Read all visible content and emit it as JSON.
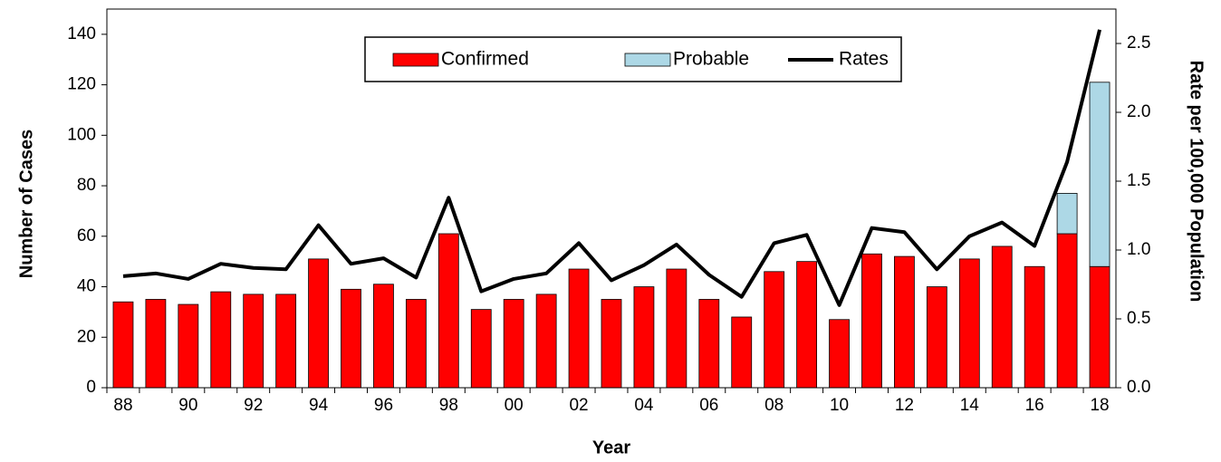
{
  "chart_data": {
    "type": "bar",
    "x_label": "Year",
    "y_label": "Number of Cases",
    "y2_label": "Rate per 100,000 Population",
    "categories": [
      "88",
      null,
      "90",
      null,
      "92",
      null,
      "94",
      null,
      "96",
      null,
      "98",
      null,
      "00",
      null,
      "02",
      null,
      "04",
      null,
      "06",
      null,
      "08",
      null,
      "10",
      null,
      "12",
      null,
      "14",
      null,
      "16",
      null,
      "18"
    ],
    "series": [
      {
        "name": "Confirmed",
        "color": "#ff0000",
        "stacked": true,
        "values": [
          34,
          35,
          33,
          38,
          37,
          37,
          51,
          39,
          41,
          35,
          61,
          31,
          35,
          37,
          47,
          35,
          40,
          47,
          35,
          28,
          46,
          50,
          27,
          53,
          52,
          40,
          51,
          56,
          48,
          61,
          48
        ]
      },
      {
        "name": "Probable",
        "color": "#add8e6",
        "stacked": true,
        "values": [
          0,
          0,
          0,
          0,
          0,
          0,
          0,
          0,
          0,
          0,
          0,
          0,
          0,
          0,
          0,
          0,
          0,
          0,
          0,
          0,
          0,
          0,
          0,
          0,
          0,
          0,
          0,
          0,
          0,
          16,
          73
        ]
      },
      {
        "name": "Rates",
        "color": "#000000",
        "type": "line",
        "axis": "y2",
        "values": [
          0.81,
          0.83,
          0.79,
          0.9,
          0.87,
          0.86,
          1.18,
          0.9,
          0.94,
          0.8,
          1.38,
          0.7,
          0.79,
          0.83,
          1.05,
          0.78,
          0.89,
          1.04,
          0.82,
          0.66,
          1.05,
          1.11,
          0.6,
          1.16,
          1.13,
          0.86,
          1.1,
          1.2,
          1.03,
          1.64,
          2.6
        ]
      }
    ],
    "ylim": [
      0,
      150
    ],
    "yticks": [
      0,
      20,
      40,
      60,
      80,
      100,
      120,
      140
    ],
    "y2lim": [
      0,
      2.75
    ],
    "y2ticks": [
      {
        "value": 0,
        "label": "0.0"
      },
      0.5,
      {
        "value": 1,
        "label": "1.0"
      },
      1.5,
      {
        "value": 2,
        "label": "2.0"
      },
      2.5
    ],
    "legend": "top"
  }
}
